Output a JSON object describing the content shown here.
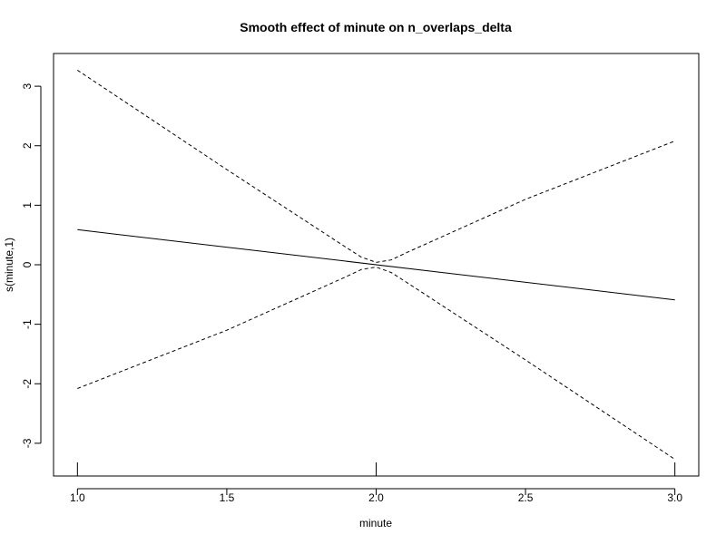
{
  "chart_data": {
    "type": "line",
    "title": "Smooth effect of minute on n_overlaps_delta",
    "xlabel": "minute",
    "ylabel": "s(minute,1)",
    "xlim": [
      0.92,
      3.08
    ],
    "ylim": [
      -3.55,
      3.55
    ],
    "x_ticks": [
      1.0,
      1.5,
      2.0,
      2.5,
      3.0
    ],
    "x_tick_labels": [
      "1.0",
      "1.5",
      "2.0",
      "2.5",
      "3.0"
    ],
    "y_ticks": [
      -3,
      -2,
      -1,
      0,
      1,
      2,
      3
    ],
    "y_tick_labels": [
      "-3",
      "-2",
      "-1",
      "0",
      "1",
      "2",
      "3"
    ],
    "grid": false,
    "series": [
      {
        "style": "solid",
        "x": [
          1.0,
          3.0
        ],
        "y": [
          0.59,
          -0.59
        ]
      },
      {
        "style": "dashed",
        "x": [
          1.0,
          1.5,
          1.9,
          1.95,
          2.0,
          2.05,
          2.1,
          2.5,
          3.0
        ],
        "y": [
          3.27,
          1.6,
          0.29,
          0.13,
          0.04,
          0.08,
          0.2,
          1.1,
          2.08
        ]
      },
      {
        "style": "dashed",
        "x": [
          1.0,
          1.5,
          1.9,
          1.95,
          2.0,
          2.05,
          2.1,
          2.5,
          3.0
        ],
        "y": [
          -2.08,
          -1.1,
          -0.2,
          -0.08,
          -0.04,
          -0.13,
          -0.29,
          -1.6,
          -3.27
        ]
      }
    ],
    "rug": [
      1.0,
      2.0,
      3.0
    ],
    "colors": {
      "line": "#000000",
      "background": "#ffffff"
    }
  }
}
